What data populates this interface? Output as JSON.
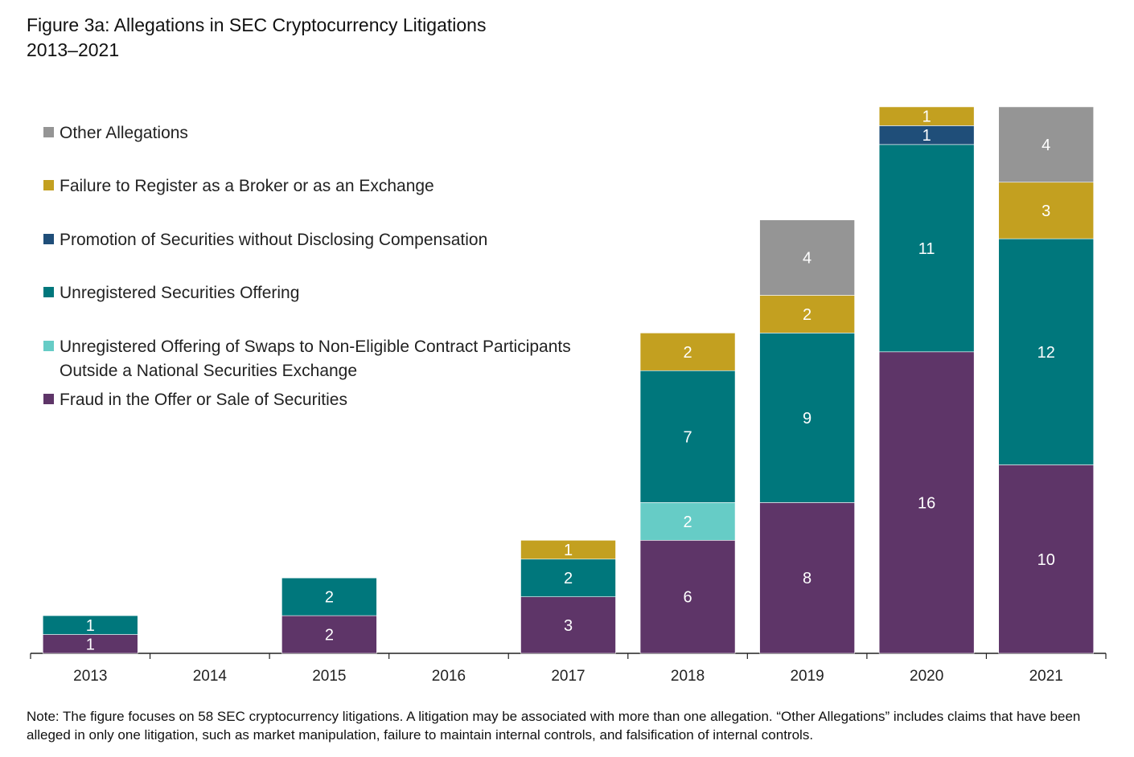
{
  "title_line1": "Figure 3a: Allegations in SEC Cryptocurrency Litigations",
  "title_line2": "2013–2021",
  "note": "Note: The figure focuses on 58 SEC cryptocurrency litigations. A litigation may be associated with more than one allegation. “Other Allegations” includes claims that have been alleged in only one litigation, such as market manipulation, failure to maintain internal controls, and falsification of internal controls.",
  "chart_data": {
    "type": "bar",
    "stacked": true,
    "categories": [
      "2013",
      "2014",
      "2015",
      "2016",
      "2017",
      "2018",
      "2019",
      "2020",
      "2021"
    ],
    "ylim": [
      0,
      29
    ],
    "grid": false,
    "legend_placement": "top-left",
    "series": [
      {
        "name": "Fraud in the Offer or Sale of Securities",
        "color": "#5e3568",
        "values": [
          1,
          0,
          2,
          0,
          3,
          6,
          8,
          16,
          10
        ]
      },
      {
        "name": "Unregistered Offering of Swaps to Non-Eligible Contract Participants Outside a National Securities Exchange",
        "color": "#66ccc6",
        "values": [
          0,
          0,
          0,
          0,
          0,
          2,
          0,
          0,
          0
        ]
      },
      {
        "name": "Unregistered Securities Offering",
        "color": "#00777c",
        "values": [
          1,
          0,
          2,
          0,
          2,
          7,
          9,
          11,
          12
        ]
      },
      {
        "name": "Promotion of Securities without Disclosing Compensation",
        "color": "#1f4e79",
        "values": [
          0,
          0,
          0,
          0,
          0,
          0,
          0,
          1,
          0
        ]
      },
      {
        "name": "Failure to Register as a Broker or as an Exchange",
        "color": "#c3a020",
        "values": [
          0,
          0,
          0,
          0,
          1,
          2,
          2,
          1,
          3
        ]
      },
      {
        "name": "Other Allegations",
        "color": "#959595",
        "values": [
          0,
          0,
          0,
          0,
          0,
          0,
          4,
          0,
          4
        ]
      }
    ],
    "legend_order": [
      5,
      4,
      3,
      2,
      1,
      0
    ],
    "legend_lines": [
      [
        "Other Allegations"
      ],
      [
        "Failure to Register as a Broker or as an Exchange"
      ],
      [
        "Promotion of Securities without Disclosing Compensation"
      ],
      [
        "Unregistered Securities Offering"
      ],
      [
        "Unregistered Offering of Swaps to Non-Eligible Contract Participants",
        "Outside a National Securities Exchange"
      ],
      [
        "Fraud in the Offer or Sale of Securities"
      ]
    ]
  }
}
